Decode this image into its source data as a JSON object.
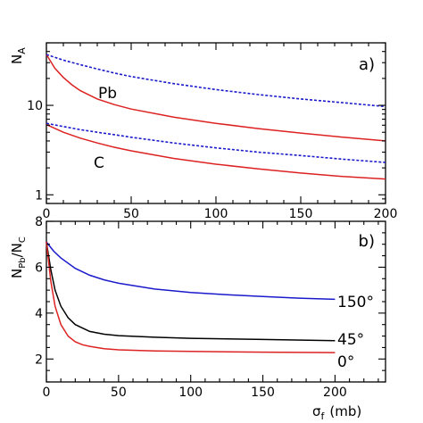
{
  "chart_data": [
    {
      "panel": "a)",
      "type": "line",
      "ylabel": "N",
      "ylabel_sub": "A",
      "xlabel": "",
      "xlim": [
        0,
        200
      ],
      "ylim": [
        0.8,
        50
      ],
      "yscale": "log",
      "xticks": [
        "0",
        "50",
        "100",
        "150",
        "200"
      ],
      "yticks": [
        "1",
        "10"
      ],
      "annotations": [
        "Pb",
        "C"
      ],
      "series": [
        {
          "label": "Pb",
          "style": "solid",
          "color": "#dd2222",
          "x": [
            0,
            5,
            10,
            15,
            20,
            30,
            40,
            50,
            75,
            100,
            125,
            150,
            175,
            200
          ],
          "y": [
            37,
            26,
            20.5,
            17,
            14.6,
            11.8,
            10.2,
            9.1,
            7.4,
            6.3,
            5.5,
            4.9,
            4.4,
            4.0
          ]
        },
        {
          "label": "Pb",
          "style": "dashed",
          "color": "#1a1acc",
          "x": [
            0,
            10,
            20,
            30,
            40,
            50,
            75,
            100,
            125,
            150,
            175,
            200
          ],
          "y": [
            37,
            32,
            28.5,
            25.5,
            23,
            21,
            17.5,
            15,
            13.2,
            11.8,
            10.7,
            9.7
          ]
        },
        {
          "label": "C",
          "style": "solid",
          "color": "#dd2222",
          "x": [
            0,
            10,
            20,
            30,
            40,
            50,
            75,
            100,
            125,
            150,
            175,
            200
          ],
          "y": [
            6.1,
            5.0,
            4.3,
            3.8,
            3.4,
            3.1,
            2.55,
            2.2,
            1.95,
            1.75,
            1.6,
            1.5
          ]
        },
        {
          "label": "C",
          "style": "dashed",
          "color": "#1a1acc",
          "x": [
            0,
            10,
            20,
            30,
            40,
            50,
            75,
            100,
            125,
            150,
            175,
            200
          ],
          "y": [
            6.3,
            5.8,
            5.35,
            5.0,
            4.7,
            4.4,
            3.8,
            3.35,
            3.0,
            2.75,
            2.5,
            2.3
          ]
        }
      ]
    },
    {
      "panel": "b)",
      "type": "line",
      "ylabel": "N",
      "ylabel_sub": "Pb",
      "ylabel_mid": "/N",
      "ylabel_sub2": "C",
      "xlabel": "σ",
      "xlabel_sub": "f",
      "xlabel_unit": "(mb)",
      "xlim": [
        0,
        235
      ],
      "ylim": [
        1,
        8
      ],
      "xticks": [
        "0",
        "50",
        "100",
        "150",
        "200"
      ],
      "yticks": [
        "2",
        "4",
        "6",
        "8"
      ],
      "annotations": [
        "150°",
        "45°",
        "0°"
      ],
      "series": [
        {
          "label": "150°",
          "color": "#1a1acc",
          "x": [
            0,
            5,
            10,
            20,
            30,
            40,
            50,
            75,
            100,
            125,
            150,
            175,
            200
          ],
          "y": [
            7.1,
            6.7,
            6.4,
            5.95,
            5.65,
            5.45,
            5.3,
            5.05,
            4.9,
            4.8,
            4.72,
            4.65,
            4.6
          ]
        },
        {
          "label": "45°",
          "color": "#000000",
          "x": [
            0,
            3,
            6,
            10,
            15,
            20,
            30,
            40,
            50,
            75,
            100,
            150,
            200
          ],
          "y": [
            7.1,
            5.9,
            5.0,
            4.3,
            3.8,
            3.5,
            3.2,
            3.08,
            3.02,
            2.95,
            2.9,
            2.85,
            2.8
          ]
        },
        {
          "label": "0°",
          "color": "#dd2222",
          "x": [
            0,
            3,
            6,
            10,
            15,
            20,
            25,
            30,
            40,
            50,
            75,
            100,
            150,
            200
          ],
          "y": [
            7.1,
            5.4,
            4.3,
            3.5,
            3.0,
            2.75,
            2.62,
            2.55,
            2.45,
            2.4,
            2.35,
            2.33,
            2.3,
            2.28
          ]
        }
      ]
    }
  ]
}
